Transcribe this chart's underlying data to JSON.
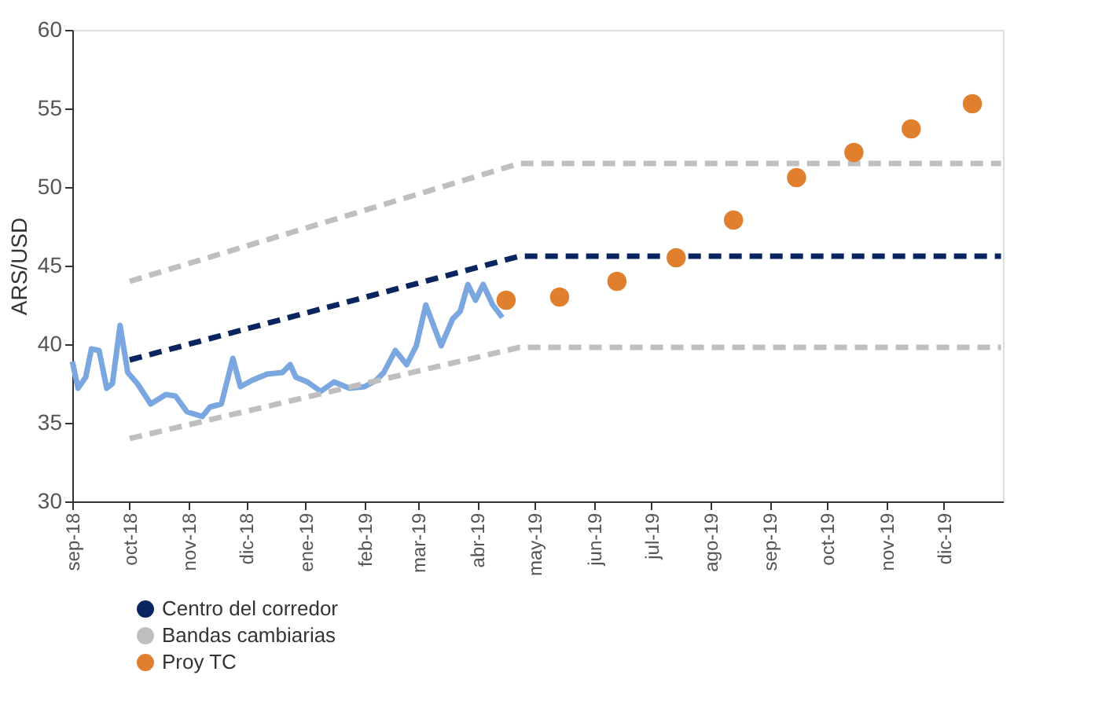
{
  "chart_data": {
    "type": "line",
    "ylabel": "ARS/USD",
    "xlim": [
      "2018-09-01",
      "2020-01-01"
    ],
    "ylim": [
      30,
      60
    ],
    "yticks": [
      30,
      35,
      40,
      45,
      50,
      55,
      60
    ],
    "xticks": [
      {
        "value": "2018-09-01",
        "label": "sep-18"
      },
      {
        "value": "2018-10-01",
        "label": "oct-18"
      },
      {
        "value": "2018-11-01",
        "label": "nov-18"
      },
      {
        "value": "2018-12-01",
        "label": "dic-18"
      },
      {
        "value": "2019-01-01",
        "label": "ene-19"
      },
      {
        "value": "2019-02-01",
        "label": "feb-19"
      },
      {
        "value": "2019-03-01",
        "label": "mar-19"
      },
      {
        "value": "2019-04-01",
        "label": "abr-19"
      },
      {
        "value": "2019-05-01",
        "label": "may-19"
      },
      {
        "value": "2019-06-01",
        "label": "jun-19"
      },
      {
        "value": "2019-07-01",
        "label": "jul-19"
      },
      {
        "value": "2019-08-01",
        "label": "ago-19"
      },
      {
        "value": "2019-09-01",
        "label": "sep-19"
      },
      {
        "value": "2019-10-01",
        "label": "oct-19"
      },
      {
        "value": "2019-11-01",
        "label": "nov-19"
      },
      {
        "value": "2019-12-01",
        "label": "dic-19"
      }
    ],
    "grid": false,
    "legend": "bottom left",
    "series": [
      {
        "color": "#7ba7e0",
        "line_style": "solid",
        "x": [
          "2018-09-01",
          "2018-09-04",
          "2018-09-08",
          "2018-09-11",
          "2018-09-15",
          "2018-09-19",
          "2018-09-22",
          "2018-09-26",
          "2018-09-30",
          "2018-10-05",
          "2018-10-12",
          "2018-10-16",
          "2018-10-20",
          "2018-10-25",
          "2018-10-31",
          "2018-11-08",
          "2018-11-12",
          "2018-11-18",
          "2018-11-24",
          "2018-11-28",
          "2018-12-04",
          "2018-12-12",
          "2018-12-20",
          "2018-12-24",
          "2018-12-27",
          "2019-01-02",
          "2019-01-09",
          "2019-01-16",
          "2019-01-24",
          "2019-02-01",
          "2019-02-07",
          "2019-02-11",
          "2019-02-17",
          "2019-02-23",
          "2019-02-28",
          "2019-03-05",
          "2019-03-09",
          "2019-03-13",
          "2019-03-19",
          "2019-03-23",
          "2019-03-27",
          "2019-03-31",
          "2019-04-04",
          "2019-04-09",
          "2019-04-14"
        ],
        "values": [
          38.9,
          37.2,
          37.9,
          39.7,
          39.6,
          37.2,
          37.5,
          41.2,
          38.2,
          37.5,
          36.2,
          36.5,
          36.8,
          36.7,
          35.7,
          35.4,
          36.0,
          36.2,
          39.1,
          37.3,
          37.7,
          38.1,
          38.2,
          38.7,
          37.9,
          37.6,
          37.0,
          37.6,
          37.2,
          37.3,
          37.7,
          38.2,
          39.6,
          38.7,
          39.9,
          42.5,
          41.2,
          39.9,
          41.6,
          42.1,
          43.8,
          42.8,
          43.8,
          42.5,
          41.7
        ]
      },
      {
        "name": "Centro del corredor",
        "color": "#0a2460",
        "line_style": "dashed",
        "x": [
          "2018-10-01",
          "2019-04-23",
          "2019-12-31"
        ],
        "values": [
          39.0,
          45.6,
          45.6
        ]
      },
      {
        "name": "Bandas cambiarias",
        "color": "#bfbfbf",
        "line_style": "dashed",
        "x": [
          "2018-10-01",
          "2019-04-23",
          "2019-12-31"
        ],
        "values": [
          44.0,
          51.5,
          51.5
        ]
      },
      {
        "color": "#bfbfbf",
        "line_style": "dashed",
        "x": [
          "2018-10-01",
          "2019-04-23",
          "2019-12-31"
        ],
        "values": [
          34.0,
          39.8,
          39.8
        ]
      },
      {
        "name": "Proy TC",
        "type": "scatter",
        "marker": "circle",
        "color": "#e07f2e",
        "x": [
          "2019-04-16",
          "2019-05-14",
          "2019-06-13",
          "2019-07-14",
          "2019-08-13",
          "2019-09-15",
          "2019-10-15",
          "2019-11-14",
          "2019-12-16"
        ],
        "values": [
          42.8,
          43.0,
          44.0,
          45.5,
          47.9,
          50.6,
          52.2,
          53.7,
          55.3
        ]
      }
    ]
  }
}
